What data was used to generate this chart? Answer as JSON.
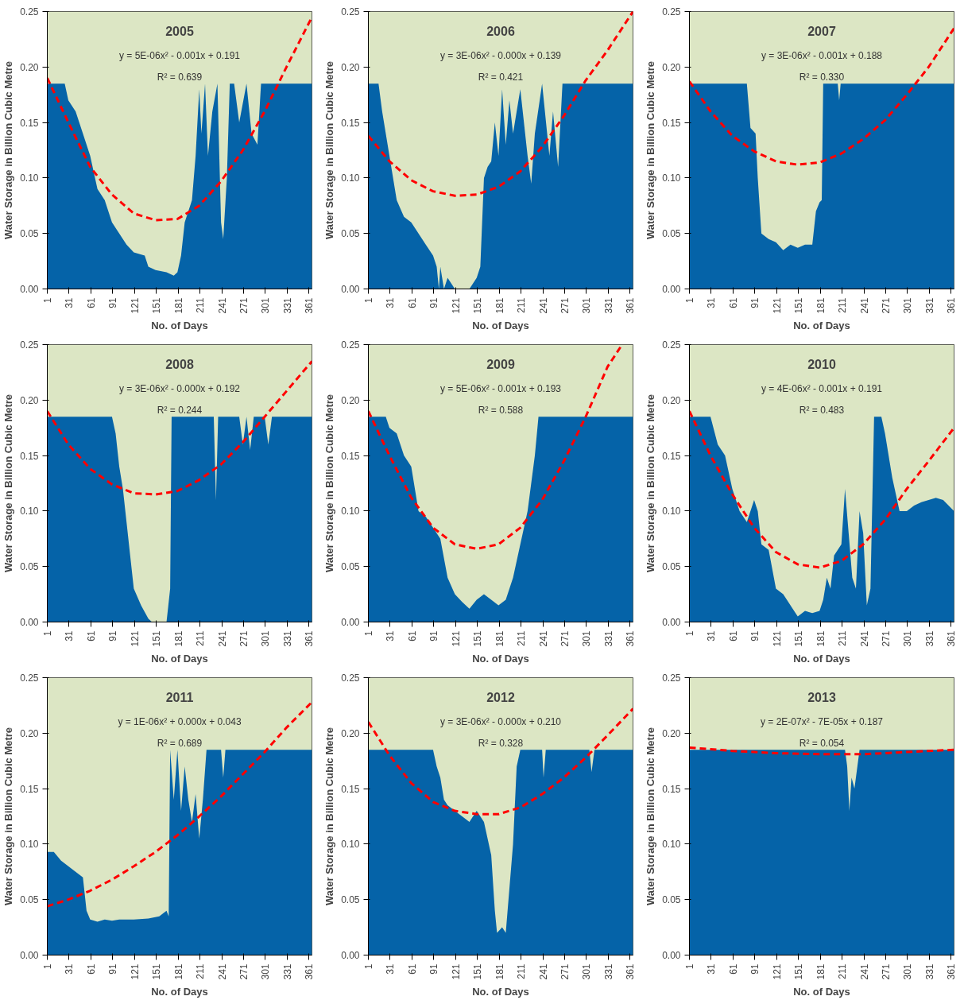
{
  "chart_data": [
    {
      "type": "area",
      "title": "2005",
      "xlabel": "No. of Days",
      "ylabel": "Water Storage in Billion Cubic Metre",
      "annotations": [
        "y = 5E-06x² - 0.001x + 0.191",
        "R² = 0.639"
      ],
      "xlim": [
        1,
        365
      ],
      "xticks": [
        1,
        31,
        61,
        91,
        121,
        151,
        181,
        211,
        241,
        271,
        301,
        331,
        361
      ],
      "ylim": [
        0,
        0.25
      ],
      "yticks": [
        {
          "value": 0,
          "label": "0.00"
        },
        {
          "value": 0.05,
          "label": "0.05"
        },
        {
          "value": 0.1,
          "label": "0.10"
        },
        {
          "value": 0.15,
          "label": "0.15"
        },
        {
          "value": 0.2,
          "label": "0.20"
        },
        {
          "value": 0.25,
          "label": "0.25"
        }
      ],
      "grid": false,
      "bands": [
        {
          "axis": "y",
          "from": 0,
          "to": 0.25,
          "color": "#dce6c4"
        }
      ],
      "series": [
        {
          "color": "#0563a8",
          "x": [
            1,
            25,
            30,
            40,
            50,
            60,
            70,
            80,
            90,
            100,
            110,
            120,
            135,
            140,
            150,
            165,
            175,
            180,
            185,
            190,
            200,
            205,
            210,
            213,
            218,
            222,
            228,
            235,
            240,
            243,
            248,
            252,
            258,
            265,
            275,
            282,
            290,
            295,
            365
          ],
          "values": [
            0.185,
            0.185,
            0.17,
            0.16,
            0.14,
            0.12,
            0.09,
            0.08,
            0.06,
            0.05,
            0.04,
            0.033,
            0.03,
            0.02,
            0.017,
            0.015,
            0.012,
            0.015,
            0.03,
            0.06,
            0.08,
            0.12,
            0.18,
            0.14,
            0.185,
            0.12,
            0.16,
            0.185,
            0.06,
            0.045,
            0.1,
            0.185,
            0.185,
            0.15,
            0.185,
            0.14,
            0.13,
            0.185,
            0.185
          ]
        },
        {
          "type": "line",
          "color": "#ff0000",
          "line_style": "dashed",
          "x": [
            1,
            30,
            60,
            90,
            120,
            150,
            180,
            210,
            240,
            270,
            300,
            330,
            365
          ],
          "values": [
            0.19,
            0.15,
            0.11,
            0.085,
            0.068,
            0.062,
            0.063,
            0.075,
            0.097,
            0.125,
            0.16,
            0.2,
            0.245
          ]
        }
      ]
    },
    {
      "type": "area",
      "title": "2006",
      "xlabel": "No. of Days",
      "ylabel": "Water Storage in Billion Cubic Metre",
      "annotations": [
        "y = 3E-06x² - 0.000x + 0.139",
        "R² = 0.421"
      ],
      "xlim": [
        1,
        365
      ],
      "xticks": [
        1,
        31,
        61,
        91,
        121,
        151,
        181,
        211,
        241,
        271,
        301,
        331,
        361
      ],
      "ylim": [
        0,
        0.25
      ],
      "yticks": [
        {
          "value": 0,
          "label": "0.00"
        },
        {
          "value": 0.05,
          "label": "0.05"
        },
        {
          "value": 0.1,
          "label": "0.10"
        },
        {
          "value": 0.15,
          "label": "0.15"
        },
        {
          "value": 0.2,
          "label": "0.20"
        },
        {
          "value": 0.25,
          "label": "0.25"
        }
      ],
      "grid": false,
      "bands": [
        {
          "axis": "y",
          "from": 0,
          "to": 0.25,
          "color": "#dce6c4"
        }
      ],
      "series": [
        {
          "color": "#0563a8",
          "x": [
            1,
            15,
            20,
            30,
            40,
            50,
            60,
            70,
            80,
            90,
            95,
            98,
            100,
            105,
            110,
            120,
            140,
            150,
            155,
            160,
            165,
            170,
            175,
            180,
            185,
            190,
            195,
            200,
            210,
            220,
            225,
            230,
            240,
            250,
            255,
            262,
            268,
            365
          ],
          "values": [
            0.185,
            0.185,
            0.16,
            0.12,
            0.08,
            0.065,
            0.06,
            0.05,
            0.04,
            0.03,
            0.02,
            0,
            0.02,
            0,
            0.01,
            0,
            0,
            0.01,
            0.02,
            0.1,
            0.11,
            0.115,
            0.15,
            0.12,
            0.18,
            0.13,
            0.17,
            0.14,
            0.18,
            0.12,
            0.095,
            0.14,
            0.185,
            0.12,
            0.16,
            0.11,
            0.185,
            0.185
          ]
        },
        {
          "type": "line",
          "color": "#ff0000",
          "line_style": "dashed",
          "x": [
            1,
            30,
            60,
            90,
            120,
            150,
            180,
            210,
            240,
            270,
            300,
            330,
            365
          ],
          "values": [
            0.138,
            0.115,
            0.098,
            0.088,
            0.084,
            0.085,
            0.092,
            0.106,
            0.128,
            0.156,
            0.188,
            0.215,
            0.25
          ]
        }
      ]
    },
    {
      "type": "area",
      "title": "2007",
      "xlabel": "No. of Days",
      "ylabel": "Water Storage in Billion Cubic Metre",
      "annotations": [
        "y = 3E-06x² - 0.001x + 0.188",
        "R² = 0.330"
      ],
      "xlim": [
        1,
        365
      ],
      "xticks": [
        1,
        31,
        61,
        91,
        121,
        151,
        181,
        211,
        241,
        271,
        301,
        331,
        361
      ],
      "ylim": [
        0,
        0.25
      ],
      "yticks": [
        {
          "value": 0,
          "label": "0.00"
        },
        {
          "value": 0.05,
          "label": "0.05"
        },
        {
          "value": 0.1,
          "label": "0.10"
        },
        {
          "value": 0.15,
          "label": "0.15"
        },
        {
          "value": 0.2,
          "label": "0.20"
        },
        {
          "value": 0.25,
          "label": "0.25"
        }
      ],
      "grid": false,
      "bands": [
        {
          "axis": "y",
          "from": 0,
          "to": 0.25,
          "color": "#dce6c4"
        }
      ],
      "series": [
        {
          "color": "#0563a8",
          "x": [
            1,
            80,
            85,
            92,
            95,
            100,
            110,
            120,
            130,
            140,
            150,
            160,
            170,
            175,
            180,
            183,
            185,
            205,
            207,
            209,
            365
          ],
          "values": [
            0.185,
            0.185,
            0.145,
            0.14,
            0.1,
            0.05,
            0.045,
            0.042,
            0.035,
            0.04,
            0.037,
            0.04,
            0.04,
            0.07,
            0.078,
            0.08,
            0.185,
            0.185,
            0.17,
            0.185,
            0.185
          ]
        },
        {
          "type": "line",
          "color": "#ff0000",
          "line_style": "dashed",
          "x": [
            1,
            30,
            60,
            90,
            120,
            150,
            180,
            210,
            240,
            270,
            300,
            330,
            365
          ],
          "values": [
            0.187,
            0.16,
            0.138,
            0.124,
            0.115,
            0.112,
            0.114,
            0.122,
            0.135,
            0.152,
            0.175,
            0.2,
            0.235
          ]
        }
      ]
    },
    {
      "type": "area",
      "title": "2008",
      "xlabel": "No. of Days",
      "ylabel": "Water Storage in Billion Cubic Metre",
      "annotations": [
        "y = 3E-06x² - 0.000x + 0.192",
        "R² = 0.244"
      ],
      "xlim": [
        1,
        365
      ],
      "xticks": [
        1,
        31,
        61,
        91,
        121,
        151,
        181,
        211,
        241,
        271,
        301,
        331,
        361
      ],
      "ylim": [
        0,
        0.25
      ],
      "yticks": [
        {
          "value": 0,
          "label": "0.00"
        },
        {
          "value": 0.05,
          "label": "0.05"
        },
        {
          "value": 0.1,
          "label": "0.10"
        },
        {
          "value": 0.15,
          "label": "0.15"
        },
        {
          "value": 0.2,
          "label": "0.20"
        },
        {
          "value": 0.25,
          "label": "0.25"
        }
      ],
      "grid": false,
      "bands": [
        {
          "axis": "y",
          "from": 0,
          "to": 0.25,
          "color": "#dce6c4"
        }
      ],
      "series": [
        {
          "color": "#0563a8",
          "x": [
            1,
            90,
            95,
            100,
            105,
            110,
            115,
            120,
            130,
            140,
            145,
            165,
            170,
            172,
            230,
            233,
            236,
            265,
            270,
            275,
            280,
            285,
            300,
            305,
            310,
            365
          ],
          "values": [
            0.185,
            0.185,
            0.17,
            0.14,
            0.12,
            0.09,
            0.06,
            0.03,
            0.015,
            0.003,
            0,
            0,
            0.03,
            0.185,
            0.185,
            0.11,
            0.185,
            0.185,
            0.16,
            0.185,
            0.155,
            0.185,
            0.185,
            0.16,
            0.185,
            0.185
          ]
        },
        {
          "type": "line",
          "color": "#ff0000",
          "line_style": "dashed",
          "x": [
            1,
            30,
            60,
            90,
            120,
            150,
            180,
            210,
            240,
            270,
            300,
            330,
            365
          ],
          "values": [
            0.19,
            0.16,
            0.138,
            0.124,
            0.116,
            0.115,
            0.118,
            0.128,
            0.142,
            0.162,
            0.185,
            0.208,
            0.235
          ]
        }
      ]
    },
    {
      "type": "area",
      "title": "2009",
      "xlabel": "No. of Days",
      "ylabel": "Water Storage in Billion Cubic Metre",
      "annotations": [
        "y = 5E-06x² - 0.001x + 0.193",
        "R² = 0.588"
      ],
      "xlim": [
        1,
        365
      ],
      "xticks": [
        1,
        31,
        61,
        91,
        121,
        151,
        181,
        211,
        241,
        271,
        301,
        331,
        361
      ],
      "ylim": [
        0,
        0.25
      ],
      "yticks": [
        {
          "value": 0,
          "label": "0.00"
        },
        {
          "value": 0.05,
          "label": "0.05"
        },
        {
          "value": 0.1,
          "label": "0.10"
        },
        {
          "value": 0.15,
          "label": "0.15"
        },
        {
          "value": 0.2,
          "label": "0.20"
        },
        {
          "value": 0.25,
          "label": "0.25"
        }
      ],
      "grid": false,
      "bands": [
        {
          "axis": "y",
          "from": 0,
          "to": 0.25,
          "color": "#dce6c4"
        }
      ],
      "series": [
        {
          "color": "#0563a8",
          "x": [
            1,
            25,
            30,
            40,
            50,
            60,
            70,
            80,
            90,
            100,
            110,
            120,
            130,
            140,
            150,
            160,
            170,
            180,
            190,
            200,
            210,
            220,
            230,
            235,
            365
          ],
          "values": [
            0.185,
            0.185,
            0.175,
            0.17,
            0.15,
            0.14,
            0.1,
            0.095,
            0.085,
            0.075,
            0.04,
            0.025,
            0.018,
            0.012,
            0.02,
            0.025,
            0.02,
            0.015,
            0.02,
            0.04,
            0.07,
            0.1,
            0.15,
            0.185,
            0.185
          ]
        },
        {
          "type": "line",
          "color": "#ff0000",
          "line_style": "dashed",
          "x": [
            1,
            30,
            60,
            90,
            120,
            150,
            180,
            210,
            240,
            270,
            300,
            330,
            350
          ],
          "values": [
            0.19,
            0.15,
            0.112,
            0.085,
            0.07,
            0.066,
            0.07,
            0.085,
            0.11,
            0.145,
            0.185,
            0.23,
            0.25
          ]
        }
      ]
    },
    {
      "type": "area",
      "title": "2010",
      "xlabel": "No. of Days",
      "ylabel": "Water Storage in Billion Cubic Metre",
      "annotations": [
        "y = 4E-06x² - 0.001x + 0.191",
        "R² = 0.483"
      ],
      "xlim": [
        1,
        365
      ],
      "xticks": [
        1,
        31,
        61,
        91,
        121,
        151,
        181,
        211,
        241,
        271,
        301,
        331,
        361
      ],
      "ylim": [
        0,
        0.25
      ],
      "yticks": [
        {
          "value": 0,
          "label": "0.00"
        },
        {
          "value": 0.05,
          "label": "0.05"
        },
        {
          "value": 0.1,
          "label": "0.10"
        },
        {
          "value": 0.15,
          "label": "0.15"
        },
        {
          "value": 0.2,
          "label": "0.20"
        },
        {
          "value": 0.25,
          "label": "0.25"
        }
      ],
      "grid": false,
      "bands": [
        {
          "axis": "y",
          "from": 0,
          "to": 0.25,
          "color": "#dce6c4"
        }
      ],
      "series": [
        {
          "color": "#0563a8",
          "x": [
            1,
            30,
            40,
            50,
            60,
            70,
            80,
            90,
            95,
            100,
            110,
            120,
            130,
            140,
            150,
            160,
            170,
            180,
            185,
            190,
            195,
            200,
            210,
            215,
            220,
            225,
            230,
            235,
            240,
            245,
            250,
            255,
            265,
            270,
            280,
            290,
            300,
            310,
            320,
            330,
            340,
            350,
            365
          ],
          "values": [
            0.185,
            0.185,
            0.16,
            0.15,
            0.12,
            0.1,
            0.09,
            0.11,
            0.1,
            0.07,
            0.065,
            0.03,
            0.025,
            0.015,
            0.005,
            0.01,
            0.008,
            0.01,
            0.02,
            0.04,
            0.03,
            0.06,
            0.07,
            0.12,
            0.08,
            0.04,
            0.03,
            0.1,
            0.08,
            0.015,
            0.03,
            0.185,
            0.185,
            0.17,
            0.13,
            0.1,
            0.1,
            0.105,
            0.108,
            0.11,
            0.112,
            0.11,
            0.1
          ]
        },
        {
          "type": "line",
          "color": "#ff0000",
          "line_style": "dashed",
          "x": [
            1,
            30,
            60,
            90,
            120,
            150,
            180,
            210,
            240,
            270,
            300,
            330,
            365
          ],
          "values": [
            0.19,
            0.15,
            0.115,
            0.085,
            0.063,
            0.052,
            0.049,
            0.055,
            0.07,
            0.092,
            0.12,
            0.145,
            0.175
          ]
        }
      ]
    },
    {
      "type": "area",
      "title": "2011",
      "xlabel": "No. of Days",
      "ylabel": "Water Storage in Billion Cubic Metre",
      "annotations": [
        "y = 1E-06x² + 0.000x + 0.043",
        "R² = 0.689"
      ],
      "xlim": [
        1,
        365
      ],
      "xticks": [
        1,
        31,
        61,
        91,
        121,
        151,
        181,
        211,
        241,
        271,
        301,
        331,
        361
      ],
      "ylim": [
        0,
        0.25
      ],
      "yticks": [
        {
          "value": 0,
          "label": "0.00"
        },
        {
          "value": 0.05,
          "label": "0.05"
        },
        {
          "value": 0.1,
          "label": "0.10"
        },
        {
          "value": 0.15,
          "label": "0.15"
        },
        {
          "value": 0.2,
          "label": "0.20"
        },
        {
          "value": 0.25,
          "label": "0.25"
        }
      ],
      "grid": false,
      "bands": [
        {
          "axis": "y",
          "from": 0,
          "to": 0.25,
          "color": "#dce6c4"
        }
      ],
      "series": [
        {
          "color": "#0563a8",
          "x": [
            1,
            10,
            20,
            30,
            40,
            50,
            55,
            60,
            70,
            80,
            90,
            100,
            120,
            140,
            155,
            165,
            168,
            170,
            175,
            180,
            185,
            190,
            195,
            200,
            205,
            210,
            215,
            220,
            240,
            243,
            246,
            365
          ],
          "values": [
            0.093,
            0.093,
            0.085,
            0.08,
            0.075,
            0.07,
            0.04,
            0.032,
            0.03,
            0.032,
            0.031,
            0.032,
            0.032,
            0.033,
            0.035,
            0.04,
            0.035,
            0.185,
            0.14,
            0.185,
            0.13,
            0.17,
            0.14,
            0.12,
            0.145,
            0.105,
            0.14,
            0.185,
            0.185,
            0.16,
            0.185,
            0.185
          ]
        },
        {
          "type": "line",
          "color": "#ff0000",
          "line_style": "dashed",
          "x": [
            1,
            30,
            60,
            90,
            120,
            150,
            180,
            210,
            240,
            270,
            300,
            330,
            365
          ],
          "values": [
            0.044,
            0.05,
            0.058,
            0.068,
            0.08,
            0.093,
            0.108,
            0.125,
            0.143,
            0.163,
            0.183,
            0.205,
            0.228
          ]
        }
      ]
    },
    {
      "type": "area",
      "title": "2012",
      "xlabel": "No. of Days",
      "ylabel": "Water Storage in Billion Cubic Metre",
      "annotations": [
        "y = 3E-06x² - 0.000x + 0.210",
        "R² = 0.328"
      ],
      "xlim": [
        1,
        365
      ],
      "xticks": [
        1,
        31,
        61,
        91,
        121,
        151,
        181,
        211,
        241,
        271,
        301,
        331,
        361
      ],
      "ylim": [
        0,
        0.25
      ],
      "yticks": [
        {
          "value": 0,
          "label": "0.00"
        },
        {
          "value": 0.05,
          "label": "0.05"
        },
        {
          "value": 0.1,
          "label": "0.10"
        },
        {
          "value": 0.15,
          "label": "0.15"
        },
        {
          "value": 0.2,
          "label": "0.20"
        },
        {
          "value": 0.25,
          "label": "0.25"
        }
      ],
      "grid": false,
      "bands": [
        {
          "axis": "y",
          "from": 0,
          "to": 0.25,
          "color": "#dce6c4"
        }
      ],
      "series": [
        {
          "color": "#0563a8",
          "x": [
            1,
            90,
            95,
            100,
            105,
            110,
            120,
            130,
            140,
            150,
            160,
            170,
            175,
            178,
            185,
            190,
            195,
            200,
            205,
            210,
            240,
            242,
            245,
            305,
            308,
            312,
            365
          ],
          "values": [
            0.185,
            0.185,
            0.17,
            0.16,
            0.14,
            0.135,
            0.13,
            0.125,
            0.12,
            0.13,
            0.12,
            0.09,
            0.04,
            0.02,
            0.025,
            0.02,
            0.06,
            0.1,
            0.17,
            0.185,
            0.185,
            0.16,
            0.185,
            0.185,
            0.165,
            0.185,
            0.185
          ]
        },
        {
          "type": "line",
          "color": "#ff0000",
          "line_style": "dashed",
          "x": [
            1,
            30,
            60,
            90,
            120,
            150,
            180,
            210,
            240,
            270,
            300,
            330,
            365
          ],
          "values": [
            0.21,
            0.18,
            0.155,
            0.138,
            0.13,
            0.127,
            0.127,
            0.133,
            0.145,
            0.16,
            0.178,
            0.198,
            0.222
          ]
        }
      ]
    },
    {
      "type": "area",
      "title": "2013",
      "xlabel": "No. of Days",
      "ylabel": "Water Storage in Billion Cubic Metre",
      "annotations": [
        "y = 2E-07x² - 7E-05x + 0.187",
        "R² = 0.054"
      ],
      "xlim": [
        1,
        365
      ],
      "xticks": [
        1,
        31,
        61,
        91,
        121,
        151,
        181,
        211,
        241,
        271,
        301,
        331,
        361
      ],
      "ylim": [
        0,
        0.25
      ],
      "yticks": [
        {
          "value": 0,
          "label": "0.00"
        },
        {
          "value": 0.05,
          "label": "0.05"
        },
        {
          "value": 0.1,
          "label": "0.10"
        },
        {
          "value": 0.15,
          "label": "0.15"
        },
        {
          "value": 0.2,
          "label": "0.20"
        },
        {
          "value": 0.25,
          "label": "0.25"
        }
      ],
      "grid": false,
      "bands": [
        {
          "axis": "y",
          "from": 0,
          "to": 0.25,
          "color": "#dce6c4"
        }
      ],
      "series": [
        {
          "color": "#0563a8",
          "x": [
            1,
            215,
            218,
            221,
            224,
            228,
            232,
            235,
            365
          ],
          "values": [
            0.185,
            0.185,
            0.17,
            0.13,
            0.16,
            0.15,
            0.17,
            0.185,
            0.185
          ]
        },
        {
          "type": "line",
          "color": "#ff0000",
          "line_style": "dashed",
          "x": [
            1,
            60,
            120,
            180,
            240,
            300,
            365
          ],
          "values": [
            0.187,
            0.184,
            0.182,
            0.181,
            0.181,
            0.183,
            0.185
          ]
        }
      ]
    }
  ]
}
